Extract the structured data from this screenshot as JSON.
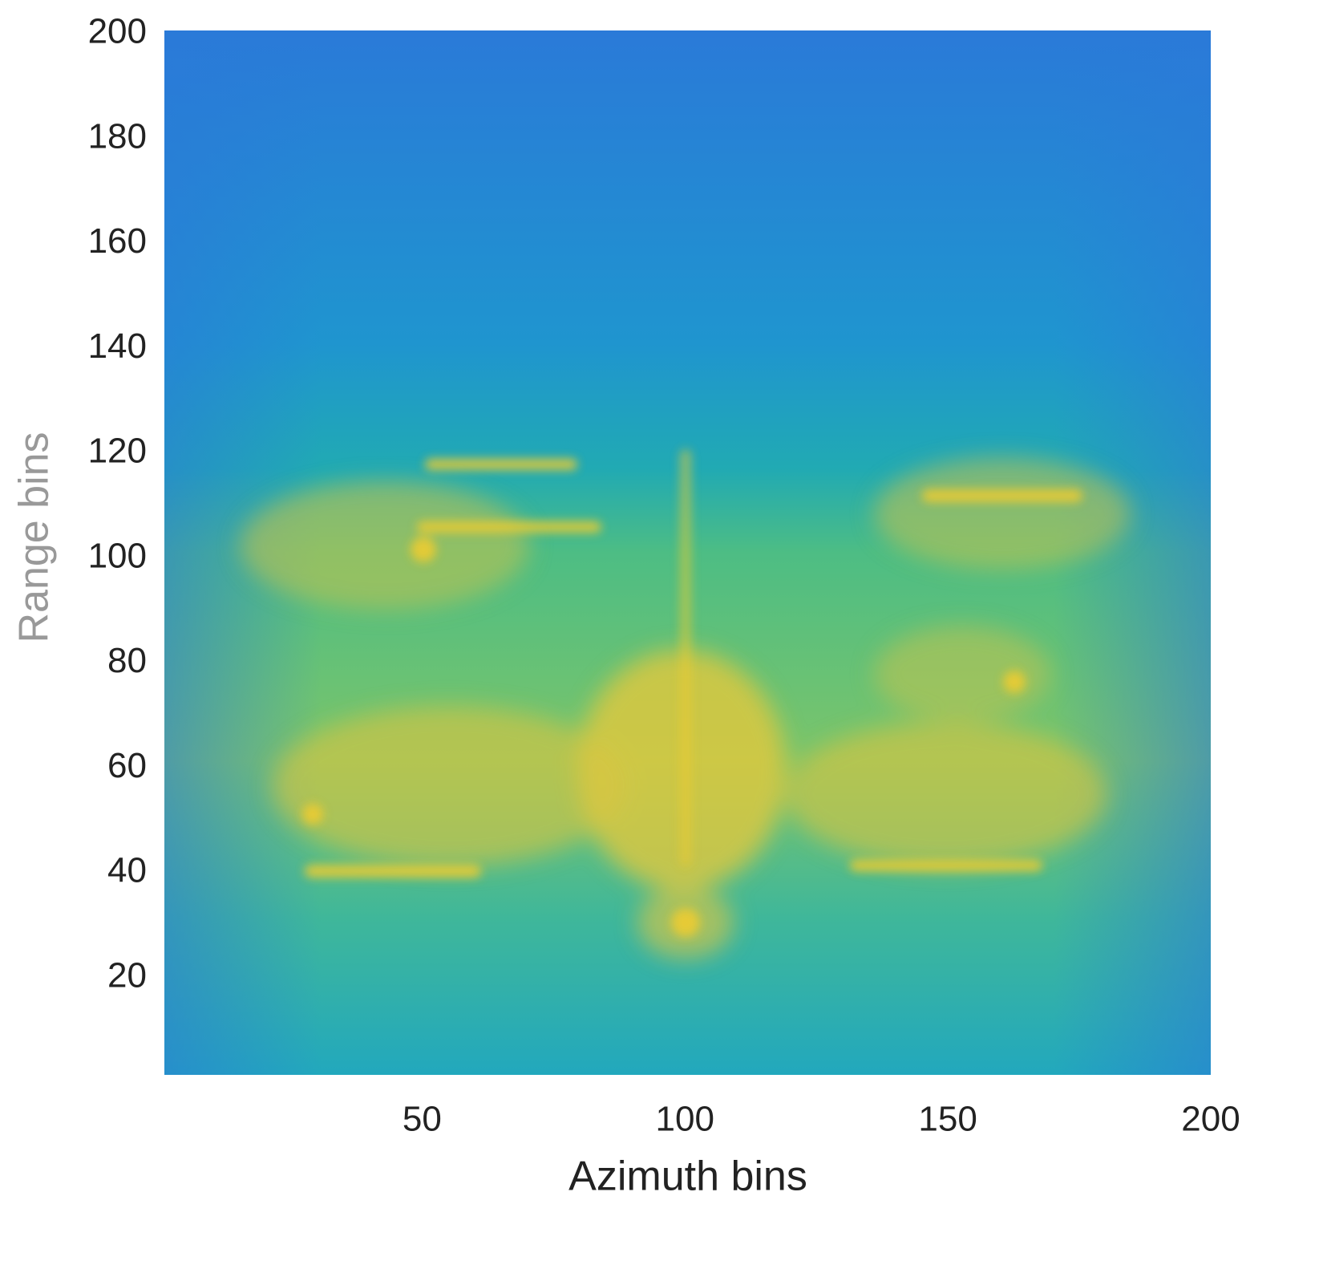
{
  "chart_data": {
    "type": "heatmap",
    "xlabel": "Azimuth bins",
    "ylabel": "Range bins",
    "xlim": [
      1,
      200
    ],
    "ylim": [
      1,
      200
    ],
    "xticks": [
      50,
      100,
      150,
      200
    ],
    "yticks": [
      20,
      40,
      60,
      80,
      100,
      120,
      140,
      160,
      180,
      200
    ],
    "grid": false
  }
}
